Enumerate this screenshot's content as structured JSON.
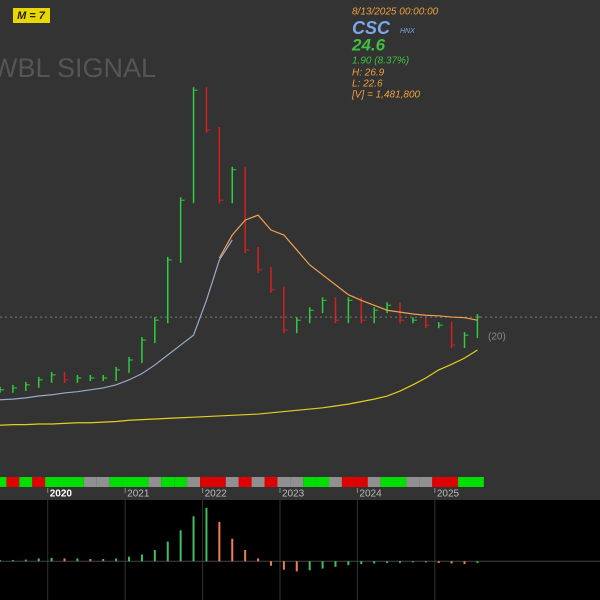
{
  "chart_data": {
    "type": "stock",
    "title": "WBL SIGNAL",
    "badge": "M = 7",
    "info": {
      "date": "8/13/2025 00:00:00",
      "symbol": "CSC",
      "exchange": "HNX",
      "price": "24.6",
      "change": "1.90 (8.37%)",
      "high": "H: 26.9",
      "low": "L: 22.6",
      "volume": "[V] = 1,481,800"
    },
    "ma_label": "(20)",
    "xlim": [
      0,
      46.5
    ],
    "xticks": [
      {
        "value": 3.7,
        "label": "2020"
      },
      {
        "value": 9.7,
        "label": "2021"
      },
      {
        "value": 15.7,
        "label": "2022"
      },
      {
        "value": 21.7,
        "label": "2023"
      },
      {
        "value": 27.7,
        "label": "2024"
      },
      {
        "value": 33.7,
        "label": "2025"
      }
    ],
    "ylim": [
      0,
      74
    ],
    "up_color": "#2ecc40",
    "down_color": "#d42020",
    "series": [
      {
        "color": "#2ecc40",
        "values": [
          12.9,
          13.2,
          13.7,
          14.5,
          15.3,
          14.5,
          14.8,
          14.8,
          14.8,
          16.1,
          17.7,
          20.9,
          24.1,
          33.8,
          43.4,
          61.1,
          54.7,
          43.4,
          48.3,
          35.4,
          32.2,
          29.0,
          22.5,
          24.1,
          25.7,
          27.3,
          24.1,
          27.3,
          24.1,
          25.7,
          26.5,
          24.1,
          24.1,
          23.3,
          23.3,
          20.1,
          21.7,
          24.6
        ]
      },
      {
        "color": "#f0a050",
        "values": [
          null,
          null,
          null,
          null,
          null,
          null,
          null,
          null,
          null,
          null,
          null,
          null,
          null,
          null,
          null,
          null,
          null,
          34.1,
          37.8,
          40.2,
          41.0,
          38.6,
          37.8,
          35.4,
          33.0,
          31.4,
          29.8,
          28.2,
          27.3,
          26.5,
          25.7,
          25.4,
          25.1,
          24.9,
          24.8,
          24.6,
          24.5,
          24.1
        ]
      },
      {
        "color": "#9aa8c8",
        "values": [
          11.3,
          11.4,
          11.6,
          11.9,
          12.1,
          12.4,
          12.6,
          12.9,
          13.2,
          13.7,
          14.5,
          15.5,
          16.9,
          18.5,
          20.1,
          21.7,
          27.3,
          33.8,
          37.0,
          null,
          null,
          null,
          null,
          null,
          null,
          null,
          null,
          null,
          null,
          null,
          null,
          null,
          null,
          null,
          null,
          null,
          null,
          null
        ]
      },
      {
        "color": "#e0d020",
        "values": [
          7.2,
          7.3,
          7.3,
          7.4,
          7.4,
          7.5,
          7.6,
          7.6,
          7.7,
          7.8,
          8.0,
          8.1,
          8.2,
          8.3,
          8.4,
          8.5,
          8.6,
          8.7,
          8.8,
          8.9,
          9.0,
          9.2,
          9.4,
          9.6,
          9.8,
          10.0,
          10.3,
          10.6,
          11.0,
          11.4,
          11.9,
          12.7,
          13.7,
          14.8,
          16.1,
          17.0,
          18.0,
          19.3
        ]
      }
    ],
    "signal_colors": [
      "#00e000",
      "#e00000",
      "#00e000",
      "#e00000",
      "#00e000",
      "#00e000",
      "#00e000",
      "#909090",
      "#909090",
      "#00e000",
      "#00e000",
      "#00e000",
      "#909090",
      "#00e000",
      "#00e000",
      "#909090",
      "#e00000",
      "#e00000",
      "#909090",
      "#e00000",
      "#909090",
      "#e00000",
      "#909090",
      "#909090",
      "#00e000",
      "#00e000",
      "#909090",
      "#e00000",
      "#e00000",
      "#909090",
      "#00e000",
      "#00e000",
      "#909090",
      "#909090",
      "#e00000",
      "#e00000",
      "#00e000",
      "#00e000"
    ],
    "oscillator": {
      "ylim": [
        -6,
        10
      ],
      "up_color": "#40c060",
      "down_color": "#f08050",
      "values": [
        0.2,
        0.2,
        0.3,
        0.5,
        0.6,
        0.5,
        0.5,
        0.4,
        0.4,
        0.5,
        0.8,
        1.2,
        2,
        3.5,
        5.5,
        8,
        9.5,
        7,
        4,
        2,
        0.5,
        -0.8,
        -1.5,
        -1.8,
        -1.6,
        -1.3,
        -1,
        -0.7,
        -0.5,
        -0.4,
        -0.3,
        -0.3,
        -0.2,
        -0.2,
        -0.3,
        -0.4,
        -0.5,
        -0.3
      ]
    }
  }
}
